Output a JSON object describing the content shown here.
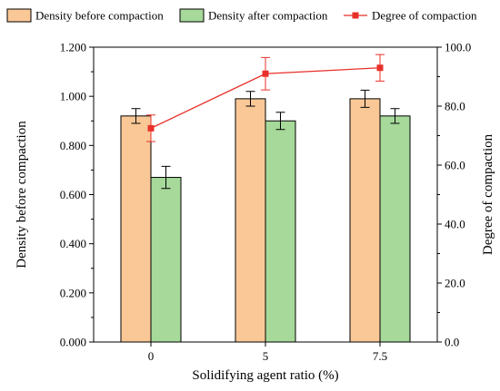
{
  "chart_data": {
    "type": "bar",
    "categories": [
      "0",
      "5",
      "7.5"
    ],
    "xlabel": "Solidifying agent ratio (%)",
    "ylabel": "Density before compaction",
    "y2label": "Degree of compaction",
    "ylim": [
      0,
      1.2
    ],
    "y2lim": [
      0,
      100
    ],
    "yticks": [
      "0.000",
      "0.200",
      "0.400",
      "0.600",
      "0.800",
      "1.000",
      "1.200"
    ],
    "y2ticks": [
      "0.0",
      "20.0",
      "40.0",
      "60.0",
      "80.0",
      "100.0"
    ],
    "grid": false,
    "legend_position": "top",
    "series": [
      {
        "name": "Density before compaction",
        "kind": "bar",
        "axis": "left",
        "color": "#FAC896",
        "values": [
          0.92,
          0.99,
          0.99
        ],
        "errors": [
          0.03,
          0.03,
          0.035
        ]
      },
      {
        "name": "Density after compaction",
        "kind": "bar",
        "axis": "left",
        "color": "#A6D99A",
        "values": [
          0.67,
          0.9,
          0.92
        ],
        "errors": [
          0.045,
          0.035,
          0.03
        ]
      },
      {
        "name": "Degree of compaction",
        "kind": "line",
        "axis": "right",
        "color": "#E8302A",
        "values": [
          72.5,
          91.0,
          93.0
        ],
        "errors": [
          4.5,
          5.5,
          4.5
        ]
      }
    ]
  }
}
